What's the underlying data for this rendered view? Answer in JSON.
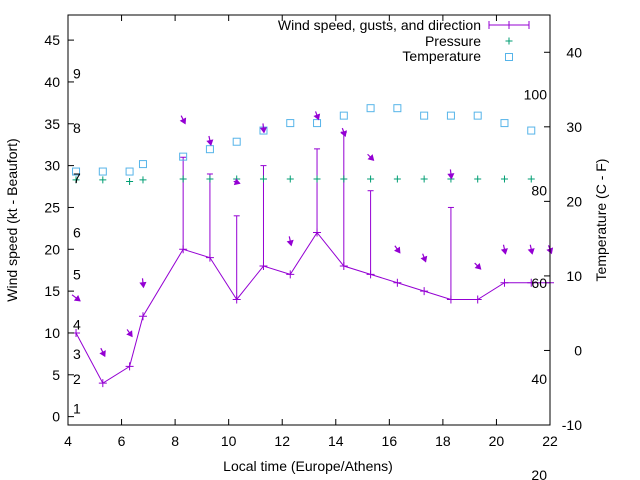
{
  "colors": {
    "wind": "#9400d3",
    "pressure": "#009e73",
    "temperature": "#56b4e9",
    "frame": "#000000"
  },
  "chart_data": {
    "type": "line",
    "xlabel": "Local time (Europe/Athens)",
    "ylabel": "Wind speed (kt - Beaufort)",
    "y2label": "Temperature (C - F)",
    "xlim": [
      4,
      22
    ],
    "ylim": [
      -1,
      48
    ],
    "y2lim": [
      -10,
      45
    ],
    "xticks": [
      4,
      6,
      8,
      10,
      12,
      14,
      16,
      18,
      20,
      22
    ],
    "yticks": [
      0,
      5,
      10,
      15,
      20,
      25,
      30,
      35,
      40,
      45
    ],
    "y2ticks": [
      -10,
      0,
      10,
      20,
      30,
      40
    ],
    "beaufort_labels": [
      {
        "text": "1",
        "y": 1
      },
      {
        "text": "2",
        "y": 4.5
      },
      {
        "text": "3",
        "y": 7.5
      },
      {
        "text": "4",
        "y": 11
      },
      {
        "text": "5",
        "y": 17
      },
      {
        "text": "6",
        "y": 22
      },
      {
        "text": "7",
        "y": 28.5
      },
      {
        "text": "8",
        "y": 34.5
      },
      {
        "text": "9",
        "y": 41
      }
    ],
    "fahrenheit_labels": [
      {
        "text": "20",
        "y": -7
      },
      {
        "text": "40",
        "y": 4.5
      },
      {
        "text": "60",
        "y": 16
      },
      {
        "text": "80",
        "y": 27
      },
      {
        "text": "100",
        "y": 38.5
      }
    ],
    "series": [
      {
        "name": "Wind speed, gusts, and direction",
        "style": "line-with-gust-bars",
        "x": [
          4.3,
          5.3,
          6.3,
          6.8,
          8.3,
          9.3,
          10.3,
          11.3,
          12.3,
          13.3,
          14.3,
          15.3,
          16.3,
          17.3,
          18.3,
          19.3,
          20.3,
          21.3,
          22
        ],
        "values": [
          10,
          4,
          6,
          12,
          20,
          19,
          14,
          18,
          17,
          22,
          18,
          17,
          16,
          15,
          14,
          14,
          16,
          16,
          16
        ],
        "gusts": [
          null,
          null,
          null,
          null,
          31,
          29,
          24,
          30,
          null,
          32,
          34,
          27,
          null,
          null,
          25,
          null,
          null,
          null,
          null
        ],
        "direction_arrows": [
          {
            "x": 4.3,
            "y": 14.2,
            "dx": 8,
            "dy": 6
          },
          {
            "x": 5.3,
            "y": 7.7,
            "dx": 4,
            "dy": 8
          },
          {
            "x": 6.3,
            "y": 10.0,
            "dx": 5,
            "dy": 7
          },
          {
            "x": 6.8,
            "y": 16.0,
            "dx": 1,
            "dy": 9
          },
          {
            "x": 8.3,
            "y": 35.5,
            "dx": 4,
            "dy": 8
          },
          {
            "x": 9.3,
            "y": 33.0,
            "dx": 2,
            "dy": 9
          },
          {
            "x": 10.3,
            "y": 28.0,
            "dx": 6,
            "dy": 2
          },
          {
            "x": 11.3,
            "y": 34.5,
            "dx": 1,
            "dy": 9
          },
          {
            "x": 12.3,
            "y": 21.0,
            "dx": 2,
            "dy": 9
          },
          {
            "x": 13.3,
            "y": 36.0,
            "dx": 3,
            "dy": 8
          },
          {
            "x": 14.3,
            "y": 34.0,
            "dx": 3,
            "dy": 8
          },
          {
            "x": 15.3,
            "y": 31.0,
            "dx": 6,
            "dy": 6
          },
          {
            "x": 16.3,
            "y": 20.0,
            "dx": 5,
            "dy": 7
          },
          {
            "x": 17.3,
            "y": 19.0,
            "dx": 3,
            "dy": 8
          },
          {
            "x": 18.3,
            "y": 29.0,
            "dx": 1,
            "dy": 9
          },
          {
            "x": 19.3,
            "y": 18.0,
            "dx": 6,
            "dy": 6
          },
          {
            "x": 20.3,
            "y": 20.0,
            "dx": 2,
            "dy": 9
          },
          {
            "x": 21.3,
            "y": 20.0,
            "dx": 2,
            "dy": 9
          },
          {
            "x": 22.0,
            "y": 20.0,
            "dx": 3,
            "dy": 8
          }
        ]
      },
      {
        "name": "Pressure",
        "style": "plus-markers",
        "axis": "y",
        "x": [
          4.3,
          5.3,
          6.3,
          6.8,
          8.3,
          9.3,
          10.3,
          11.3,
          12.3,
          13.3,
          14.3,
          15.3,
          16.3,
          17.3,
          18.3,
          19.3,
          20.3,
          21.3
        ],
        "values": [
          28.3,
          28.3,
          28.1,
          28.3,
          28.4,
          28.4,
          28.4,
          28.4,
          28.4,
          28.4,
          28.4,
          28.4,
          28.4,
          28.4,
          28.4,
          28.4,
          28.4,
          28.4
        ]
      },
      {
        "name": "Temperature",
        "style": "square-markers",
        "axis": "y2",
        "x": [
          4.3,
          5.3,
          6.3,
          6.8,
          8.3,
          9.3,
          10.3,
          11.3,
          12.3,
          13.3,
          14.3,
          15.3,
          16.3,
          17.3,
          18.3,
          19.3,
          20.3,
          21.3
        ],
        "values": [
          24,
          24,
          24,
          25,
          26,
          27,
          28,
          29.5,
          30.5,
          30.5,
          31.5,
          32.5,
          32.5,
          31.5,
          31.5,
          31.5,
          30.5,
          29.5
        ]
      }
    ],
    "legend_position": "top-right",
    "grid": false
  }
}
